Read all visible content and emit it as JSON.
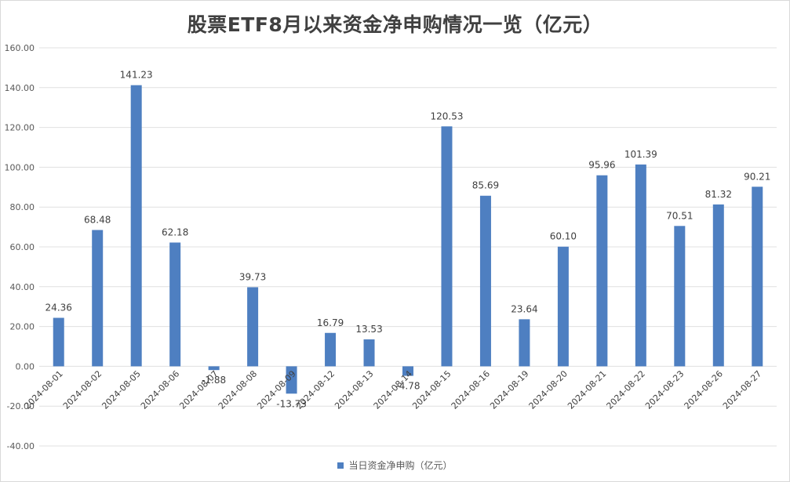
{
  "chart_data": {
    "type": "bar",
    "title": "股票ETF8月以来资金净申购情况一览（亿元）",
    "categories": [
      "2024-08-01",
      "2024-08-02",
      "2024-08-05",
      "2024-08-06",
      "2024-08-07",
      "2024-08-08",
      "2024-08-09",
      "2024-08-12",
      "2024-08-13",
      "2024-08-14",
      "2024-08-15",
      "2024-08-16",
      "2024-08-19",
      "2024-08-20",
      "2024-08-21",
      "2024-08-22",
      "2024-08-23",
      "2024-08-26",
      "2024-08-27"
    ],
    "series": [
      {
        "name": "当日资金净申购（亿元）",
        "values": [
          24.36,
          68.48,
          141.23,
          62.18,
          -1.88,
          39.73,
          -13.73,
          16.79,
          13.53,
          -4.78,
          120.53,
          85.69,
          23.64,
          60.1,
          95.96,
          101.39,
          70.51,
          81.32,
          90.21
        ],
        "labels": [
          "24.36",
          "68.48",
          "141.23",
          "62.18",
          "-1.88",
          "39.73",
          "-13.73",
          "16.79",
          "13.53",
          "-4.78",
          "120.53",
          "85.69",
          "23.64",
          "60.10",
          "95.96",
          "101.39",
          "70.51",
          "81.32",
          "90.21"
        ]
      }
    ],
    "ylim": [
      -40,
      160
    ],
    "yticks": [
      "-40.00",
      "-20.00",
      "0.00",
      "20.00",
      "40.00",
      "60.00",
      "80.00",
      "100.00",
      "120.00",
      "140.00",
      "160.00"
    ],
    "xlabel": "",
    "ylabel": "",
    "grid": true,
    "legend_position": "bottom",
    "colors": {
      "bar": "#4e7fc1",
      "grid": "#e0e0e0",
      "text": "#404040"
    }
  }
}
